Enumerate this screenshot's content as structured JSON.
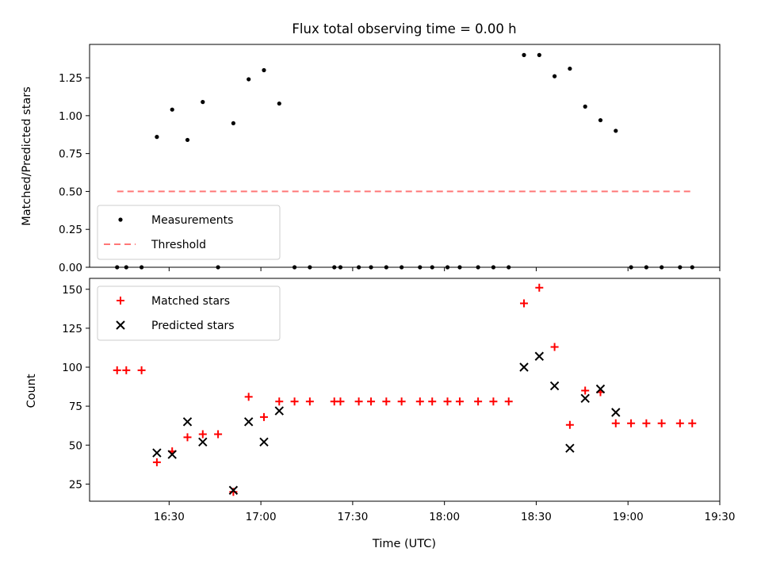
{
  "chart_data": [
    {
      "type": "scatter",
      "title": "Flux total observing time = 0.00 h",
      "xlabel": "",
      "ylabel": "Matched/Predicted stars",
      "xlim": [
        "16:04",
        "19:30"
      ],
      "ylim": [
        0,
        1.47
      ],
      "yticks": [
        "0.00",
        "0.25",
        "0.50",
        "0.75",
        "1.00",
        "1.25"
      ],
      "legend_position": "lower-left",
      "series": [
        {
          "name": "Measurements",
          "marker": "dot",
          "color": "#000000",
          "points": [
            [
              "16:13",
              0
            ],
            [
              "16:16",
              0
            ],
            [
              "16:21",
              0
            ],
            [
              "16:26",
              0.86
            ],
            [
              "16:31",
              1.04
            ],
            [
              "16:36",
              0.84
            ],
            [
              "16:41",
              1.09
            ],
            [
              "16:46",
              0
            ],
            [
              "16:51",
              0.95
            ],
            [
              "16:56",
              1.24
            ],
            [
              "17:01",
              1.3
            ],
            [
              "17:06",
              1.08
            ],
            [
              "17:11",
              0
            ],
            [
              "17:16",
              0
            ],
            [
              "17:24",
              0
            ],
            [
              "17:26",
              0
            ],
            [
              "17:32",
              0
            ],
            [
              "17:36",
              0
            ],
            [
              "17:41",
              0
            ],
            [
              "17:46",
              0
            ],
            [
              "17:52",
              0
            ],
            [
              "17:56",
              0
            ],
            [
              "18:01",
              0
            ],
            [
              "18:05",
              0
            ],
            [
              "18:11",
              0
            ],
            [
              "18:16",
              0
            ],
            [
              "18:21",
              0
            ],
            [
              "18:26",
              1.4
            ],
            [
              "18:31",
              1.4
            ],
            [
              "18:36",
              1.26
            ],
            [
              "18:41",
              1.31
            ],
            [
              "18:46",
              1.06
            ],
            [
              "18:51",
              0.97
            ],
            [
              "18:56",
              0.9
            ],
            [
              "19:01",
              0
            ],
            [
              "19:06",
              0
            ],
            [
              "19:11",
              0
            ],
            [
              "19:17",
              0
            ],
            [
              "19:21",
              0
            ]
          ]
        },
        {
          "name": "Threshold",
          "marker": "dashed-line",
          "color": "#ff7777",
          "points": [
            [
              "16:13",
              0.5
            ],
            [
              "19:21",
              0.5
            ]
          ]
        }
      ]
    },
    {
      "type": "scatter",
      "title": "",
      "xlabel": "Time (UTC)",
      "ylabel": "Count",
      "xlim": [
        "16:04",
        "19:30"
      ],
      "ylim": [
        14,
        157
      ],
      "yticks": [
        "25",
        "50",
        "75",
        "100",
        "125",
        "150"
      ],
      "xticks": [
        "16:30",
        "17:00",
        "17:30",
        "18:00",
        "18:30",
        "19:00",
        "19:30"
      ],
      "legend_position": "upper-left",
      "series": [
        {
          "name": "Matched stars",
          "marker": "plus",
          "color": "#ff0000",
          "points": [
            [
              "16:13",
              98
            ],
            [
              "16:16",
              98
            ],
            [
              "16:21",
              98
            ],
            [
              "16:26",
              39
            ],
            [
              "16:31",
              46
            ],
            [
              "16:36",
              55
            ],
            [
              "16:41",
              57
            ],
            [
              "16:46",
              57
            ],
            [
              "16:51",
              20
            ],
            [
              "16:56",
              81
            ],
            [
              "17:01",
              68
            ],
            [
              "17:06",
              78
            ],
            [
              "17:11",
              78
            ],
            [
              "17:16",
              78
            ],
            [
              "17:24",
              78
            ],
            [
              "17:26",
              78
            ],
            [
              "17:32",
              78
            ],
            [
              "17:36",
              78
            ],
            [
              "17:41",
              78
            ],
            [
              "17:46",
              78
            ],
            [
              "17:52",
              78
            ],
            [
              "17:56",
              78
            ],
            [
              "18:01",
              78
            ],
            [
              "18:05",
              78
            ],
            [
              "18:11",
              78
            ],
            [
              "18:16",
              78
            ],
            [
              "18:21",
              78
            ],
            [
              "18:26",
              141
            ],
            [
              "18:31",
              151
            ],
            [
              "18:36",
              113
            ],
            [
              "18:41",
              63
            ],
            [
              "18:46",
              85
            ],
            [
              "18:51",
              84
            ],
            [
              "18:56",
              64
            ],
            [
              "19:01",
              64
            ],
            [
              "19:06",
              64
            ],
            [
              "19:11",
              64
            ],
            [
              "19:17",
              64
            ],
            [
              "19:21",
              64
            ]
          ]
        },
        {
          "name": "Predicted stars",
          "marker": "x",
          "color": "#000000",
          "points": [
            [
              "16:26",
              45
            ],
            [
              "16:31",
              44
            ],
            [
              "16:36",
              65
            ],
            [
              "16:41",
              52
            ],
            [
              "16:51",
              21
            ],
            [
              "16:56",
              65
            ],
            [
              "17:01",
              52
            ],
            [
              "17:06",
              72
            ],
            [
              "18:26",
              100
            ],
            [
              "18:31",
              107
            ],
            [
              "18:36",
              88
            ],
            [
              "18:41",
              48
            ],
            [
              "18:46",
              80
            ],
            [
              "18:51",
              86
            ],
            [
              "18:56",
              71
            ]
          ]
        }
      ]
    }
  ]
}
